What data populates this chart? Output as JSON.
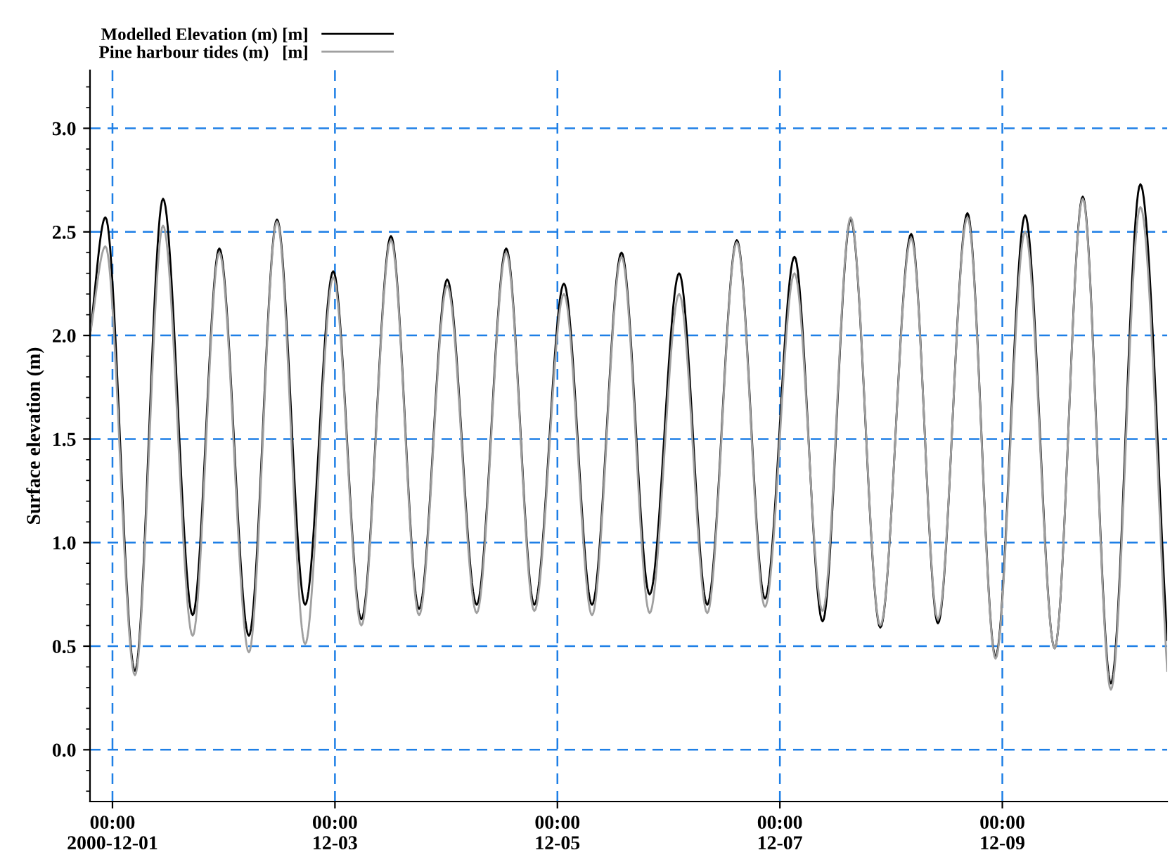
{
  "chart_data": {
    "type": "line",
    "ylabel": "Surface elevation (m)",
    "x": [
      "2000-11-30T19:09",
      "2000-11-30T22:29",
      "2000-12-01T04:51",
      "2000-12-01T10:55",
      "2000-12-01T17:18",
      "2000-12-01T23:03",
      "2000-12-02T05:26",
      "2000-12-02T11:30",
      "2000-12-02T17:34",
      "2000-12-02T23:38",
      "2000-12-03T05:42",
      "2000-12-03T12:05",
      "2000-12-03T18:09",
      "2000-12-04T00:13",
      "2000-12-04T06:35",
      "2000-12-04T12:57",
      "2000-12-04T19:01",
      "2000-12-05T01:24",
      "2000-12-05T07:28",
      "2000-12-05T13:50",
      "2000-12-05T19:54",
      "2000-12-06T02:16",
      "2000-12-06T08:20",
      "2000-12-06T14:43",
      "2000-12-06T20:47",
      "2000-12-07T03:09",
      "2000-12-07T09:13",
      "2000-12-07T15:17",
      "2000-12-07T21:40",
      "2000-12-08T04:20",
      "2000-12-08T10:06",
      "2000-12-08T16:28",
      "2000-12-08T22:32",
      "2000-12-09T04:55",
      "2000-12-09T11:17",
      "2000-12-09T17:21",
      "2000-12-09T23:25",
      "2000-12-10T05:47",
      "2000-12-10T11:34"
    ],
    "series": [
      {
        "name": "Modelled Elevation (m) [m]",
        "color": "#000000",
        "values": [
          2.0,
          2.57,
          0.38,
          2.66,
          0.65,
          2.42,
          0.55,
          2.56,
          0.7,
          2.31,
          0.63,
          2.48,
          0.68,
          2.27,
          0.7,
          2.42,
          0.7,
          2.25,
          0.7,
          2.4,
          0.75,
          2.3,
          0.7,
          2.46,
          0.73,
          2.38,
          0.62,
          2.56,
          0.59,
          2.49,
          0.61,
          2.59,
          0.45,
          2.58,
          0.49,
          2.67,
          0.32,
          2.73,
          0.53
        ]
      },
      {
        "name": "Pine harbour tides (m)   [m]",
        "color": "#a0a0a0",
        "values": [
          2.0,
          2.43,
          0.36,
          2.53,
          0.55,
          2.4,
          0.47,
          2.55,
          0.51,
          2.28,
          0.6,
          2.46,
          0.65,
          2.24,
          0.66,
          2.4,
          0.67,
          2.2,
          0.65,
          2.38,
          0.66,
          2.2,
          0.66,
          2.45,
          0.69,
          2.3,
          0.67,
          2.57,
          0.6,
          2.47,
          0.63,
          2.57,
          0.44,
          2.5,
          0.49,
          2.66,
          0.29,
          2.62,
          0.38
        ]
      }
    ],
    "xlim": [
      "2000-11-30T19:09",
      "2000-12-10T11:34"
    ],
    "xticks": [
      {
        "value": "2000-12-01T00:00",
        "label": "00:00\n2000-12-01"
      },
      {
        "value": "2000-12-03T00:00",
        "label": "00:00\n12-03"
      },
      {
        "value": "2000-12-05T00:00",
        "label": "00:00\n12-05"
      },
      {
        "value": "2000-12-07T00:00",
        "label": "00:00\n12-07"
      },
      {
        "value": "2000-12-09T00:00",
        "label": "00:00\n12-09"
      }
    ],
    "ylim": [
      -0.25,
      3.28
    ],
    "yticks": [
      {
        "value": 0,
        "label": "0.0"
      },
      {
        "value": 0.5,
        "label": "0.5"
      },
      {
        "value": 1,
        "label": "1.0"
      },
      {
        "value": 1.5,
        "label": "1.5"
      },
      {
        "value": 2,
        "label": "2.0"
      },
      {
        "value": 2.5,
        "label": "2.5"
      },
      {
        "value": 3,
        "label": "3.0"
      }
    ],
    "grid": true,
    "legend": "top left",
    "line_style": "solid",
    "marker": "none"
  }
}
